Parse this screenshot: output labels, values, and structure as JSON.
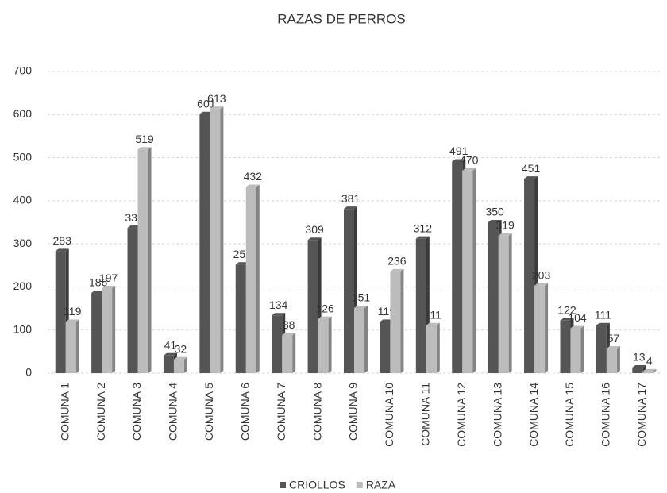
{
  "chart_data": {
    "type": "bar",
    "title": "RAZAS DE PERROS",
    "categories": [
      "COMUNA 1",
      "COMUNA 2",
      "COMUNA 3",
      "COMUNA 4",
      "COMUNA 5",
      "COMUNA 6",
      "COMUNA 7",
      "COMUNA 8",
      "COMUNA 9",
      "COMUNA 10",
      "COMUNA 11",
      "COMUNA 12",
      "COMUNA 13",
      "COMUNA 14",
      "COMUNA 15",
      "COMUNA 16",
      "COMUNA 17"
    ],
    "series": [
      {
        "name": "CRIOLLOS",
        "color": "#555555",
        "values": [
          283,
          186,
          337,
          41,
          601,
          252,
          134,
          309,
          381,
          119,
          312,
          491,
          350,
          451,
          122,
          111,
          13
        ]
      },
      {
        "name": "RAZA",
        "color": "#bcbcbc",
        "values": [
          119,
          197,
          519,
          32,
          613,
          432,
          88,
          126,
          151,
          236,
          111,
          470,
          319,
          203,
          104,
          57,
          4
        ]
      }
    ],
    "ylim": [
      0,
      700
    ],
    "yticks": [
      0,
      100,
      200,
      300,
      400,
      500,
      600,
      700
    ],
    "grid": true,
    "legend": "bottom"
  }
}
